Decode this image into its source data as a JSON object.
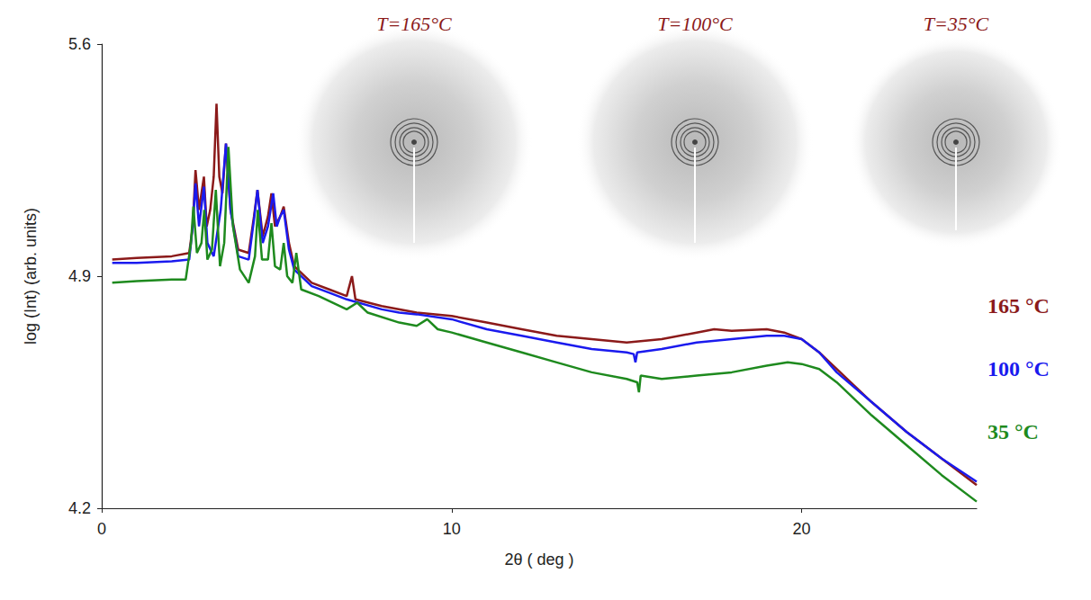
{
  "chart_data": {
    "type": "line",
    "x_label": "2θ ( deg )",
    "y_label": "log (Int) (arb. units)",
    "xlim": [
      0,
      25
    ],
    "xticks": [
      0,
      10,
      20
    ],
    "ylim": [
      4.2,
      5.6
    ],
    "yticks": [
      4.2,
      4.9,
      5.6
    ],
    "grid": false,
    "legend": "right",
    "annotations": [
      "T=165°C",
      "T=100°C",
      "T=35°C"
    ],
    "series": [
      {
        "name": "165 °C",
        "color": "#8b1a1a",
        "x": [
          0.3,
          1,
          2,
          2.5,
          2.6,
          2.68,
          2.78,
          2.92,
          3.0,
          3.1,
          3.2,
          3.28,
          3.36,
          3.45,
          3.55,
          3.68,
          3.9,
          4.2,
          4.35,
          4.45,
          4.6,
          4.75,
          4.85,
          4.95,
          5.1,
          5.2,
          5.35,
          5.5,
          6,
          6.5,
          7,
          7.15,
          7.25,
          8,
          9,
          10,
          11,
          12,
          13,
          14,
          15,
          16,
          17,
          17.5,
          18,
          19,
          19.5,
          20,
          20.5,
          21,
          22,
          23,
          24,
          25
        ],
        "values": [
          4.95,
          4.955,
          4.96,
          4.97,
          5.05,
          5.22,
          5.1,
          5.2,
          5.05,
          5.1,
          5.2,
          5.42,
          5.2,
          5.15,
          5.3,
          5.1,
          4.98,
          4.97,
          5.08,
          5.16,
          5.02,
          5.08,
          5.15,
          5.05,
          5.08,
          5.11,
          5.0,
          4.93,
          4.88,
          4.86,
          4.84,
          4.9,
          4.83,
          4.81,
          4.79,
          4.78,
          4.76,
          4.74,
          4.72,
          4.71,
          4.7,
          4.71,
          4.73,
          4.74,
          4.735,
          4.74,
          4.73,
          4.71,
          4.67,
          4.62,
          4.52,
          4.43,
          4.35,
          4.27
        ]
      },
      {
        "name": "100 °C",
        "color": "#1a1aee",
        "x": [
          0.3,
          1,
          2,
          2.5,
          2.6,
          2.68,
          2.78,
          2.92,
          3.02,
          3.2,
          3.4,
          3.55,
          3.68,
          3.9,
          4.2,
          4.35,
          4.45,
          4.6,
          4.75,
          4.9,
          5.0,
          5.1,
          5.2,
          5.35,
          5.5,
          6,
          6.5,
          7,
          8,
          8.5,
          9,
          10,
          11,
          12,
          13,
          14,
          15,
          15.2,
          15.25,
          15.3,
          16,
          17,
          18,
          19,
          19.5,
          20,
          20.5,
          21,
          22,
          23,
          24,
          25
        ],
        "values": [
          4.94,
          4.94,
          4.945,
          4.95,
          5.05,
          5.18,
          5.05,
          5.17,
          5.0,
          4.96,
          5.1,
          5.3,
          5.1,
          4.96,
          4.95,
          5.07,
          5.16,
          5.0,
          5.05,
          5.15,
          5.05,
          5.08,
          5.1,
          4.98,
          4.92,
          4.87,
          4.85,
          4.83,
          4.8,
          4.79,
          4.785,
          4.77,
          4.74,
          4.72,
          4.7,
          4.68,
          4.67,
          4.665,
          4.64,
          4.67,
          4.68,
          4.7,
          4.71,
          4.72,
          4.72,
          4.71,
          4.67,
          4.61,
          4.52,
          4.43,
          4.35,
          4.28
        ]
      },
      {
        "name": "35 °C",
        "color": "#1e8a1e",
        "x": [
          0.3,
          1,
          2,
          2.4,
          2.55,
          2.62,
          2.72,
          2.85,
          2.93,
          3.02,
          3.15,
          3.26,
          3.38,
          3.5,
          3.62,
          3.75,
          3.95,
          4.2,
          4.38,
          4.46,
          4.58,
          4.75,
          4.85,
          4.95,
          5.1,
          5.2,
          5.3,
          5.45,
          5.56,
          5.7,
          6.2,
          7,
          7.3,
          7.6,
          8.5,
          9,
          9.3,
          9.6,
          10,
          11,
          12,
          13,
          14,
          15,
          15.3,
          15.35,
          15.4,
          16,
          17,
          18,
          19,
          19.6,
          20,
          20.5,
          21,
          22,
          23,
          24,
          25
        ],
        "values": [
          4.88,
          4.885,
          4.89,
          4.89,
          5.0,
          5.11,
          4.97,
          5.0,
          5.1,
          4.95,
          4.98,
          5.16,
          4.93,
          5.0,
          5.29,
          5.05,
          4.92,
          4.88,
          4.96,
          5.1,
          4.95,
          4.95,
          5.06,
          4.93,
          4.92,
          5.0,
          4.9,
          4.88,
          4.97,
          4.86,
          4.84,
          4.8,
          4.82,
          4.79,
          4.76,
          4.75,
          4.77,
          4.74,
          4.73,
          4.7,
          4.67,
          4.64,
          4.61,
          4.59,
          4.58,
          4.55,
          4.6,
          4.59,
          4.6,
          4.61,
          4.63,
          4.64,
          4.635,
          4.62,
          4.58,
          4.48,
          4.39,
          4.3,
          4.22
        ]
      }
    ]
  }
}
